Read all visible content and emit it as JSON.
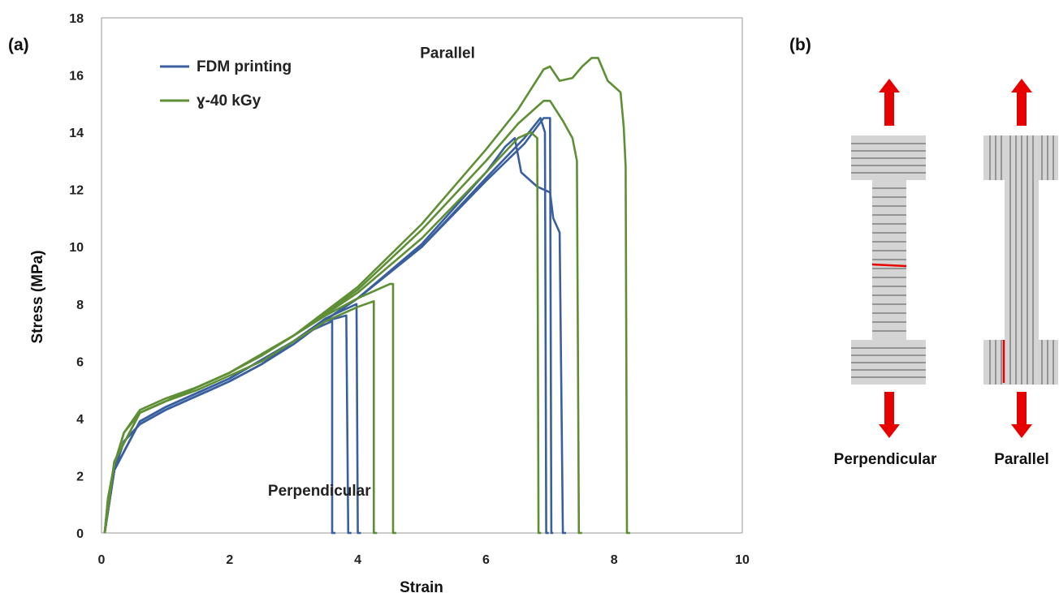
{
  "panel_a_label": "(a)",
  "panel_b_label": "(b)",
  "chart_data": {
    "type": "line",
    "xlabel": "Strain",
    "ylabel": "Stress (MPa)",
    "xlim": [
      0,
      10
    ],
    "ylim": [
      0,
      18
    ],
    "xticks": [
      0,
      2,
      4,
      6,
      8,
      10
    ],
    "yticks": [
      0,
      2,
      4,
      6,
      8,
      10,
      12,
      14,
      16,
      18
    ],
    "grid": false,
    "legend_placement": "top-left",
    "legend": [
      {
        "label": "FDM printing",
        "color": "#3a5f9f"
      },
      {
        "label": "ɣ-40 kGy",
        "color": "#5f8f35"
      }
    ],
    "annotations": [
      {
        "text": "Parallel",
        "x": 5.4,
        "y": 16.6
      },
      {
        "text": "Perpendicular",
        "x": 3.4,
        "y": 1.3
      }
    ],
    "series": [
      {
        "group": "FDM printing",
        "color": "#3a5f9f",
        "points": [
          [
            0.05,
            0
          ],
          [
            0.1,
            1.0
          ],
          [
            0.2,
            2.2
          ],
          [
            0.35,
            3.2
          ],
          [
            0.6,
            3.8
          ],
          [
            1.0,
            4.3
          ],
          [
            1.5,
            4.8
          ],
          [
            2.0,
            5.3
          ],
          [
            2.5,
            5.9
          ],
          [
            3.0,
            6.6
          ],
          [
            3.3,
            7.1
          ],
          [
            3.6,
            7.4
          ],
          [
            3.6,
            0
          ],
          [
            3.65,
            0
          ]
        ]
      },
      {
        "group": "FDM printing",
        "color": "#3a5f9f",
        "points": [
          [
            0.05,
            0
          ],
          [
            0.1,
            1.0
          ],
          [
            0.2,
            2.2
          ],
          [
            0.35,
            3.2
          ],
          [
            0.6,
            3.8
          ],
          [
            1.0,
            4.3
          ],
          [
            1.5,
            4.8
          ],
          [
            2.0,
            5.3
          ],
          [
            2.5,
            5.9
          ],
          [
            3.0,
            6.7
          ],
          [
            3.5,
            7.4
          ],
          [
            3.82,
            7.6
          ],
          [
            3.85,
            0
          ],
          [
            3.9,
            0
          ]
        ]
      },
      {
        "group": "FDM printing",
        "color": "#3a5f9f",
        "points": [
          [
            0.05,
            0
          ],
          [
            0.1,
            1.0
          ],
          [
            0.2,
            2.2
          ],
          [
            0.35,
            3.2
          ],
          [
            0.6,
            3.8
          ],
          [
            1.0,
            4.3
          ],
          [
            1.5,
            4.8
          ],
          [
            2.0,
            5.3
          ],
          [
            2.5,
            5.9
          ],
          [
            3.0,
            6.7
          ],
          [
            3.5,
            7.5
          ],
          [
            3.98,
            8.0
          ],
          [
            4.0,
            0
          ],
          [
            4.05,
            0
          ]
        ]
      },
      {
        "group": "FDM printing",
        "color": "#3a5f9f",
        "points": [
          [
            0.05,
            0
          ],
          [
            0.2,
            2.2
          ],
          [
            0.6,
            3.9
          ],
          [
            1.0,
            4.4
          ],
          [
            2.0,
            5.4
          ],
          [
            3.0,
            6.7
          ],
          [
            4.0,
            8.2
          ],
          [
            5.0,
            10.0
          ],
          [
            6.0,
            12.3
          ],
          [
            6.6,
            13.6
          ],
          [
            6.9,
            14.5
          ],
          [
            7.0,
            14.5
          ],
          [
            7.02,
            0
          ],
          [
            7.05,
            0
          ]
        ]
      },
      {
        "group": "FDM printing",
        "color": "#3a5f9f",
        "points": [
          [
            0.05,
            0
          ],
          [
            0.2,
            2.2
          ],
          [
            0.6,
            3.9
          ],
          [
            1.0,
            4.4
          ],
          [
            2.0,
            5.4
          ],
          [
            3.0,
            6.7
          ],
          [
            4.0,
            8.2
          ],
          [
            5.0,
            10.0
          ],
          [
            6.0,
            12.4
          ],
          [
            6.6,
            13.8
          ],
          [
            6.85,
            14.5
          ],
          [
            6.92,
            14.0
          ],
          [
            6.94,
            0
          ],
          [
            6.98,
            0
          ]
        ]
      },
      {
        "group": "FDM printing",
        "color": "#3a5f9f",
        "points": [
          [
            0.05,
            0
          ],
          [
            0.2,
            2.2
          ],
          [
            0.6,
            3.9
          ],
          [
            1.0,
            4.4
          ],
          [
            2.0,
            5.4
          ],
          [
            3.0,
            6.7
          ],
          [
            4.0,
            8.2
          ],
          [
            5.0,
            10.1
          ],
          [
            6.0,
            12.6
          ],
          [
            6.3,
            13.5
          ],
          [
            6.45,
            13.8
          ],
          [
            6.55,
            12.6
          ],
          [
            6.8,
            12.1
          ],
          [
            7.0,
            11.9
          ],
          [
            7.05,
            11.0
          ],
          [
            7.15,
            10.5
          ],
          [
            7.2,
            0
          ],
          [
            7.25,
            0
          ]
        ]
      },
      {
        "group": "ɣ-40 kGy",
        "color": "#5f8f35",
        "points": [
          [
            0.05,
            0
          ],
          [
            0.1,
            1.2
          ],
          [
            0.2,
            2.4
          ],
          [
            0.35,
            3.5
          ],
          [
            0.6,
            4.2
          ],
          [
            1.0,
            4.6
          ],
          [
            1.5,
            5.0
          ],
          [
            2.0,
            5.5
          ],
          [
            2.5,
            6.0
          ],
          [
            3.0,
            6.7
          ],
          [
            3.5,
            7.4
          ],
          [
            4.0,
            7.9
          ],
          [
            4.25,
            8.1
          ],
          [
            4.25,
            0
          ],
          [
            4.3,
            0
          ]
        ]
      },
      {
        "group": "ɣ-40 kGy",
        "color": "#5f8f35",
        "points": [
          [
            0.05,
            0
          ],
          [
            0.1,
            1.2
          ],
          [
            0.2,
            2.4
          ],
          [
            0.35,
            3.5
          ],
          [
            0.6,
            4.3
          ],
          [
            1.0,
            4.7
          ],
          [
            1.5,
            5.1
          ],
          [
            2.0,
            5.6
          ],
          [
            2.5,
            6.2
          ],
          [
            3.0,
            6.9
          ],
          [
            3.5,
            7.6
          ],
          [
            4.0,
            8.2
          ],
          [
            4.5,
            8.7
          ],
          [
            4.55,
            8.7
          ],
          [
            4.55,
            0
          ],
          [
            4.6,
            0
          ]
        ]
      },
      {
        "group": "ɣ-40 kGy",
        "color": "#5f8f35",
        "points": [
          [
            0.05,
            0
          ],
          [
            0.2,
            2.5
          ],
          [
            0.6,
            4.2
          ],
          [
            1.0,
            4.6
          ],
          [
            2.0,
            5.6
          ],
          [
            3.0,
            6.9
          ],
          [
            4.0,
            8.4
          ],
          [
            5.0,
            10.3
          ],
          [
            6.0,
            12.6
          ],
          [
            6.5,
            13.8
          ],
          [
            6.7,
            14.0
          ],
          [
            6.8,
            13.8
          ],
          [
            6.82,
            0
          ],
          [
            6.86,
            0
          ]
        ]
      },
      {
        "group": "ɣ-40 kGy",
        "color": "#5f8f35",
        "points": [
          [
            0.05,
            0
          ],
          [
            0.2,
            2.5
          ],
          [
            0.6,
            4.2
          ],
          [
            1.0,
            4.6
          ],
          [
            2.0,
            5.6
          ],
          [
            3.0,
            6.9
          ],
          [
            4.0,
            8.5
          ],
          [
            5.0,
            10.6
          ],
          [
            6.0,
            13.0
          ],
          [
            6.5,
            14.3
          ],
          [
            6.9,
            15.1
          ],
          [
            7.0,
            15.1
          ],
          [
            7.2,
            14.4
          ],
          [
            7.35,
            13.8
          ],
          [
            7.42,
            13.0
          ],
          [
            7.45,
            0
          ],
          [
            7.5,
            0
          ]
        ]
      },
      {
        "group": "ɣ-40 kGy",
        "color": "#5f8f35",
        "points": [
          [
            0.05,
            0
          ],
          [
            0.2,
            2.5
          ],
          [
            0.6,
            4.2
          ],
          [
            1.0,
            4.6
          ],
          [
            2.0,
            5.6
          ],
          [
            3.0,
            6.9
          ],
          [
            4.0,
            8.6
          ],
          [
            5.0,
            10.8
          ],
          [
            6.0,
            13.4
          ],
          [
            6.5,
            14.8
          ],
          [
            6.9,
            16.2
          ],
          [
            7.0,
            16.3
          ],
          [
            7.15,
            15.8
          ],
          [
            7.35,
            15.9
          ],
          [
            7.5,
            16.3
          ],
          [
            7.65,
            16.6
          ],
          [
            7.75,
            16.6
          ],
          [
            7.9,
            15.8
          ],
          [
            8.1,
            15.4
          ],
          [
            8.15,
            14.2
          ],
          [
            8.18,
            12.8
          ],
          [
            8.2,
            0
          ],
          [
            8.25,
            0
          ]
        ]
      }
    ]
  },
  "schematic": {
    "arrow_color": "#e60000",
    "fracture_color": "#e60000",
    "perpendicular_label": "Perpendicular",
    "parallel_label": "Parallel"
  }
}
